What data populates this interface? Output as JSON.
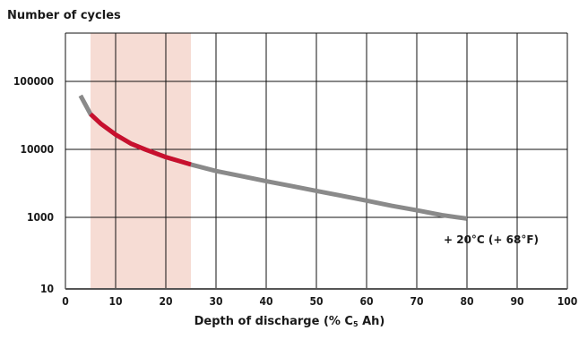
{
  "chart_data": {
    "type": "line",
    "ylabel": "Number of cycles",
    "xlabel_main": "Depth of discharge (% C",
    "xlabel_sub": "5",
    "xlabel_end": " Ah)",
    "xlim": [
      0,
      100
    ],
    "x_ticks": [
      0,
      10,
      20,
      30,
      40,
      50,
      60,
      70,
      80,
      90,
      100
    ],
    "y_scale": "log (uneven tick spacing as printed)",
    "y_ticks": [
      {
        "label": "10",
        "value": 10
      },
      {
        "label": "1000",
        "value": 1000
      },
      {
        "label": "10000",
        "value": 10000
      },
      {
        "label": "100000",
        "value": 100000
      }
    ],
    "y_grid_extra": [
      1000000
    ],
    "grid": true,
    "highlight_band": {
      "x_range": [
        5,
        25
      ],
      "color": "#f6dcd4"
    },
    "colors": {
      "curve": "#8a8a8a",
      "highlight_curve": "#c8102e",
      "grid": "#111111"
    },
    "series": [
      {
        "x": [
          3,
          5,
          7,
          10,
          13,
          16,
          20,
          25,
          30,
          35,
          40,
          45,
          50,
          55,
          60,
          65,
          70,
          75,
          80
        ],
        "y": [
          62000,
          33000,
          24000,
          16500,
          12200,
          9900,
          7700,
          6000,
          4800,
          4050,
          3400,
          2900,
          2450,
          2080,
          1760,
          1480,
          1270,
          1080,
          920
        ]
      }
    ],
    "annotations": [
      {
        "text": "+ 20°C (+ 68°F)"
      }
    ]
  }
}
